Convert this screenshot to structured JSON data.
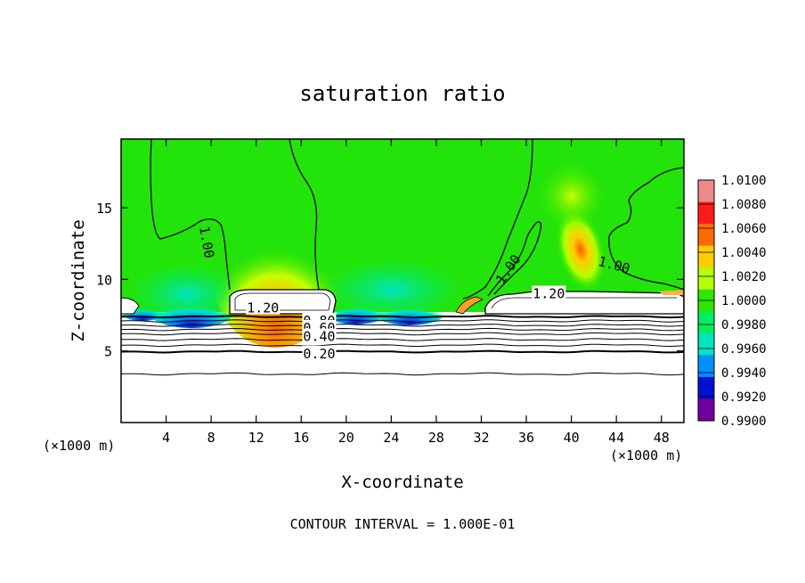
{
  "chart_data": {
    "type": "heatmap",
    "title": "saturation ratio",
    "xlabel": "X-coordinate",
    "ylabel": "Z-coordinate",
    "x_unit": "(×1000 m)",
    "x_unit_right": "(×1000 m)",
    "xlim": [
      0,
      50
    ],
    "ylim": [
      0,
      19.8
    ],
    "x_ticks": [
      4,
      8,
      12,
      16,
      20,
      24,
      28,
      32,
      36,
      40,
      44,
      48
    ],
    "y_ticks": [
      5,
      10,
      15
    ],
    "footer": "CONTOUR INTERVAL = 1.000E-01",
    "colorbar": {
      "min": 0.99,
      "max": 1.01,
      "labels": [
        "1.0100",
        "1.0080",
        "1.0060",
        "1.0040",
        "1.0020",
        "1.0000",
        "0.9980",
        "0.9960",
        "0.9940",
        "0.9920",
        "0.9900"
      ],
      "colors": [
        "#f08a8a",
        "#ff1a1a",
        "#ff6a00",
        "#ffcc00",
        "#b4ff00",
        "#2ee600",
        "#00ee60",
        "#00e4c0",
        "#0090ff",
        "#0010d0",
        "#7000a0"
      ]
    },
    "contour_labels": [
      {
        "text": "1.00",
        "x": 7.6,
        "y": 12.6,
        "angle": 80
      },
      {
        "text": "1.00",
        "x": 34.4,
        "y": 10.7,
        "angle": -55
      },
      {
        "text": "1.00",
        "x": 43.8,
        "y": 11.0,
        "angle": 15
      },
      {
        "text": "1.20",
        "x": 12.6,
        "y": 8.0,
        "angle": 0
      },
      {
        "text": "1.20",
        "x": 38.0,
        "y": 9.0,
        "angle": 0
      },
      {
        "text": "0.80",
        "x": 17.6,
        "y": 7.1,
        "angle": 0
      },
      {
        "text": "0.60",
        "x": 17.6,
        "y": 6.6,
        "angle": 0
      },
      {
        "text": "0.40",
        "x": 17.6,
        "y": 6.0,
        "angle": 0
      },
      {
        "text": "0.20",
        "x": 17.6,
        "y": 4.8,
        "angle": 0
      }
    ],
    "thick_contours_z": [
      7.4,
      4.95
    ],
    "thin_contours_z": [
      7.1,
      6.8,
      6.5,
      6.2,
      5.8,
      5.4,
      3.4
    ]
  }
}
